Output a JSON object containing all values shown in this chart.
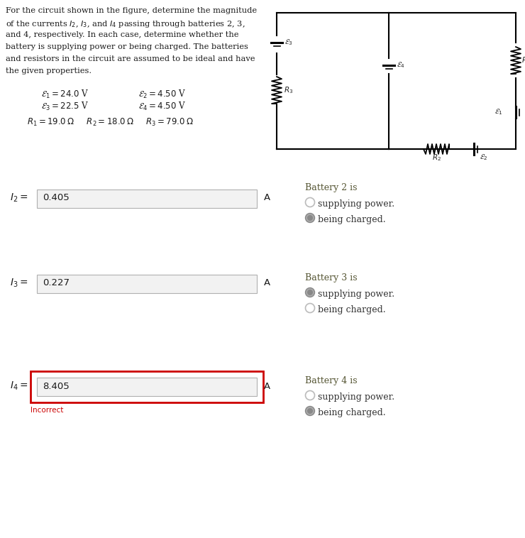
{
  "bg_color": "#ffffff",
  "fig_w": 7.4,
  "fig_h": 7.58,
  "dpi": 100,
  "problem_lines": [
    "For the circuit shown in the figure, determine the magnitude",
    "of the currents $I_2$, $I_3$, and $I_4$ passing through batteries 2, 3,",
    "and 4, respectively. In each case, determine whether the",
    "battery is supplying power or being charged. The batteries",
    "and resistors in the circuit are assumed to be ideal and have",
    "the given properties."
  ],
  "emf_left": [
    "$\\mathcal{E}_1 = 24.0$ V",
    "$\\mathcal{E}_3 = 22.5$ V"
  ],
  "emf_right": [
    "$\\mathcal{E}_2 = 4.50$ V",
    "$\\mathcal{E}_4 = 4.50$ V"
  ],
  "resistor_line": "$R_1 = 19.0\\,\\Omega$     $R_2 = 18.0\\,\\Omega$     $R_3 = 79.0\\,\\Omega$",
  "answer_labels": [
    "$I_2 =$",
    "$I_3 =$",
    "$I_4 =$"
  ],
  "answer_values": [
    "0.405",
    "0.227",
    "8.405"
  ],
  "answer_correct": [
    true,
    true,
    false
  ],
  "battery_titles": [
    "Battery 2 is",
    "Battery 3 is",
    "Battery 4 is"
  ],
  "radio_options": [
    [
      "supplying power.",
      "being charged."
    ],
    [
      "supplying power.",
      "being charged."
    ],
    [
      "supplying power.",
      "being charged."
    ]
  ],
  "radio_selected": [
    [
      false,
      true
    ],
    [
      true,
      false
    ],
    [
      false,
      true
    ]
  ],
  "incorrect_text": "Incorrect"
}
